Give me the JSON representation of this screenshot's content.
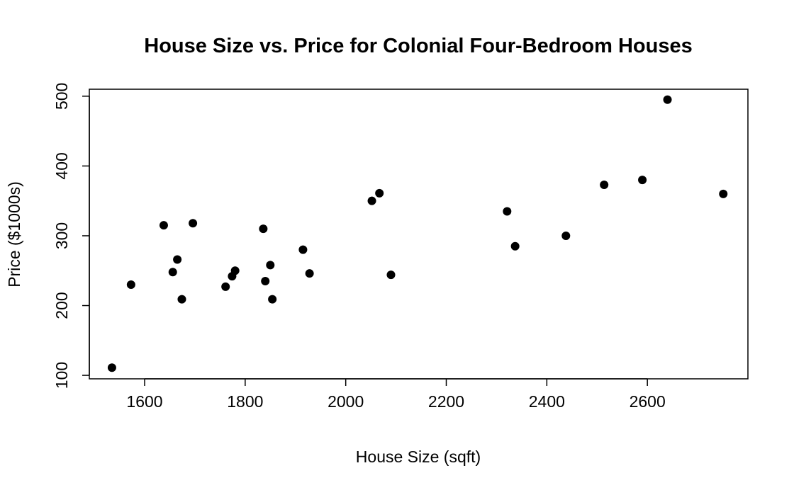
{
  "chart_data": {
    "type": "scatter",
    "title": "House Size vs. Price for Colonial Four-Bedroom Houses",
    "xlabel": "House Size (sqft)",
    "ylabel": "Price ($1000s)",
    "xlim": [
      1490,
      2800
    ],
    "ylim": [
      95,
      510
    ],
    "x_ticks": [
      1600,
      1800,
      2000,
      2200,
      2400,
      2600
    ],
    "y_ticks": [
      100,
      200,
      300,
      400,
      500
    ],
    "grid": false,
    "series": [
      {
        "color": "#000000",
        "points": [
          {
            "x": 1535,
            "y": 111
          },
          {
            "x": 1573,
            "y": 230
          },
          {
            "x": 1638,
            "y": 315
          },
          {
            "x": 1656,
            "y": 248
          },
          {
            "x": 1665,
            "y": 266
          },
          {
            "x": 1674,
            "y": 209
          },
          {
            "x": 1696,
            "y": 318
          },
          {
            "x": 1761,
            "y": 227
          },
          {
            "x": 1774,
            "y": 242
          },
          {
            "x": 1780,
            "y": 250
          },
          {
            "x": 1836,
            "y": 310
          },
          {
            "x": 1840,
            "y": 235
          },
          {
            "x": 1850,
            "y": 258
          },
          {
            "x": 1854,
            "y": 209
          },
          {
            "x": 1915,
            "y": 280
          },
          {
            "x": 1928,
            "y": 246
          },
          {
            "x": 2052,
            "y": 350
          },
          {
            "x": 2067,
            "y": 361
          },
          {
            "x": 2090,
            "y": 244
          },
          {
            "x": 2321,
            "y": 335
          },
          {
            "x": 2337,
            "y": 285
          },
          {
            "x": 2438,
            "y": 300
          },
          {
            "x": 2514,
            "y": 373
          },
          {
            "x": 2590,
            "y": 380
          },
          {
            "x": 2640,
            "y": 495
          },
          {
            "x": 2751,
            "y": 360
          }
        ]
      }
    ]
  }
}
